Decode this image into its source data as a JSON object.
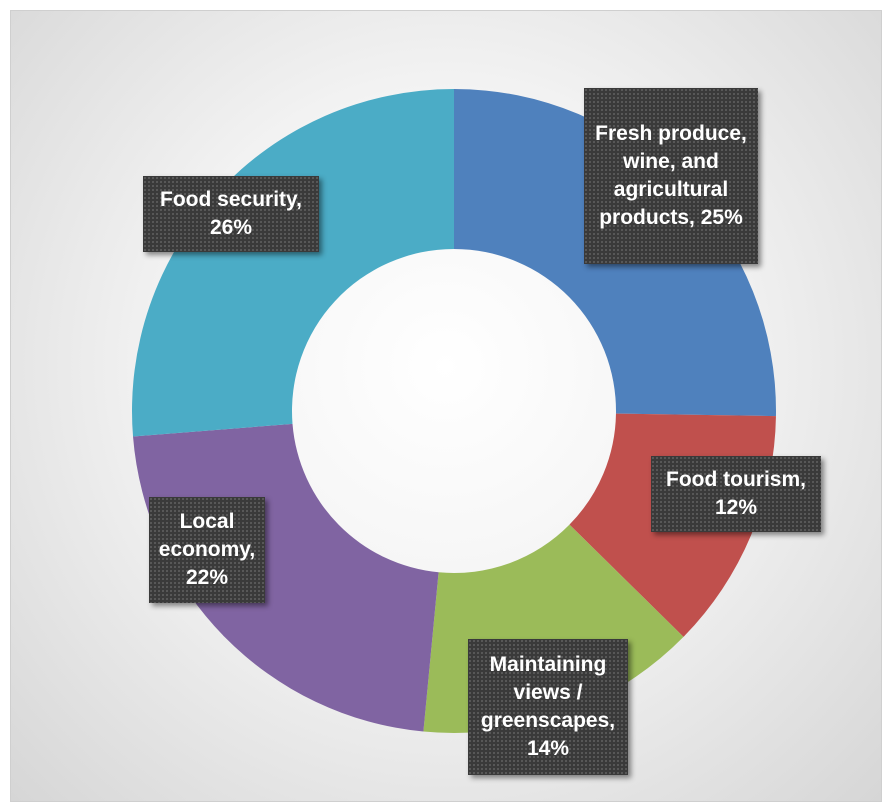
{
  "chart_data": {
    "type": "donut",
    "slices": [
      {
        "label": "Fresh produce,\nwine, and\nagricultural\nproducts, 25%",
        "category": "Fresh produce, wine, and agricultural products",
        "value": 25,
        "color": "#4f81bd"
      },
      {
        "label": "Food tourism,\n12%",
        "category": "Food tourism",
        "value": 12,
        "color": "#c0504d"
      },
      {
        "label": "Maintaining\nviews /\ngreenscapes,\n14%",
        "category": "Maintaining views / greenscapes",
        "value": 14,
        "color": "#9bbb59"
      },
      {
        "label": "Local\neconomy,\n22%",
        "category": "Local economy",
        "value": 22,
        "color": "#8064a2"
      },
      {
        "label": "Food security,\n26%",
        "category": "Food security",
        "value": 26,
        "color": "#4bacc6"
      }
    ],
    "legend": "none"
  }
}
